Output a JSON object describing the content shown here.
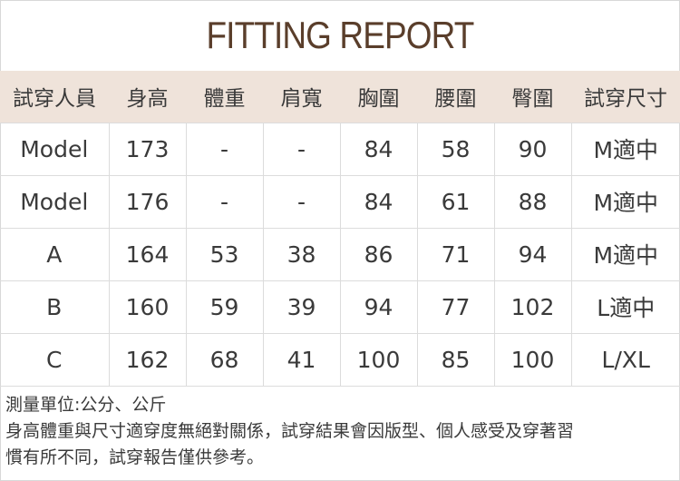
{
  "title": "FITTING REPORT",
  "headers": [
    "試穿人員",
    "身高",
    "體重",
    "肩寬",
    "胸圍",
    "腰圍",
    "臀圍",
    "試穿尺寸"
  ],
  "rows": [
    [
      "Model",
      "173",
      "-",
      "-",
      "84",
      "58",
      "90",
      "M適中"
    ],
    [
      "Model",
      "176",
      "-",
      "-",
      "84",
      "61",
      "88",
      "M適中"
    ],
    [
      "A",
      "164",
      "53",
      "38",
      "86",
      "71",
      "94",
      "M適中"
    ],
    [
      "B",
      "160",
      "59",
      "39",
      "94",
      "77",
      "102",
      "L適中"
    ],
    [
      "C",
      "162",
      "68",
      "41",
      "100",
      "85",
      "100",
      "L/XL"
    ]
  ],
  "notes": [
    "測量單位:公分、公斤",
    "身高體重與尺寸適穿度無絕對關係，試穿結果會因版型、個人感受及穿著習",
    "慣有所不同，試穿報告僅供參考。"
  ],
  "colors": {
    "title": "#5a3e2b",
    "header_bg": "#efe3da"
  }
}
